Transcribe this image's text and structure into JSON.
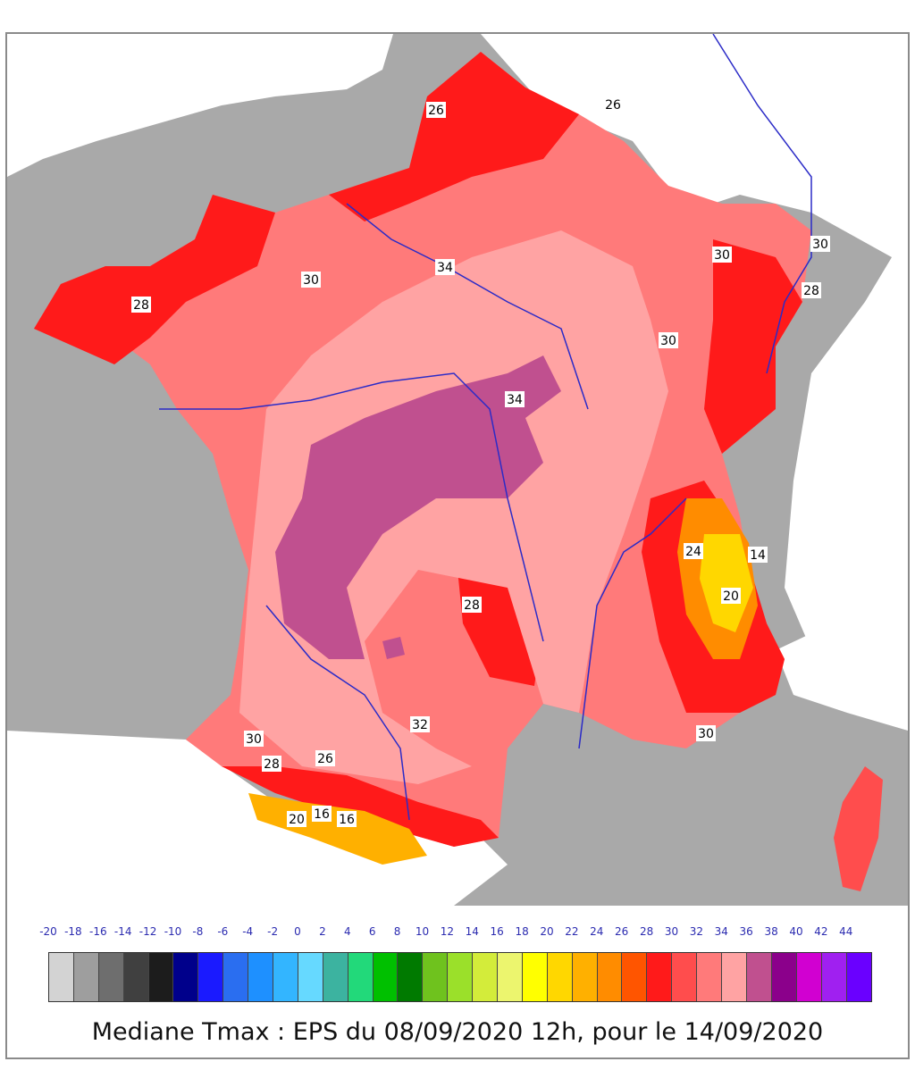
{
  "caption": "Mediane Tmax : EPS du 08/09/2020 12h, pour le 14/09/2020",
  "legend": {
    "ticks": [
      "-20",
      "-18",
      "-16",
      "-14",
      "-12",
      "-10",
      "-8",
      "-6",
      "-4",
      "-2",
      "0",
      "2",
      "4",
      "6",
      "8",
      "10",
      "12",
      "14",
      "16",
      "18",
      "20",
      "22",
      "24",
      "26",
      "28",
      "30",
      "32",
      "34",
      "36",
      "38",
      "40",
      "42",
      "44"
    ],
    "colors": [
      "#d3d3d3",
      "#9e9e9e",
      "#6e6e6e",
      "#404040",
      "#1c1c1c",
      "#00008b",
      "#1a1aff",
      "#2a6ef0",
      "#1e90ff",
      "#33b5ff",
      "#66d9ff",
      "#3cb3a0",
      "#22d97a",
      "#00c000",
      "#007a00",
      "#6fc21e",
      "#9be02a",
      "#d3ec3a",
      "#ecf56e",
      "#ffff00",
      "#ffd700",
      "#ffb000",
      "#ff8c00",
      "#ff5500",
      "#ff1a1a",
      "#ff4d4d",
      "#ff7a7a",
      "#ffa3a3",
      "#c0508f",
      "#8b008b",
      "#d100d1",
      "#a020f0",
      "#6a00ff"
    ]
  },
  "contour_labels": [
    "26",
    "26",
    "30",
    "34",
    "30",
    "30",
    "28",
    "28",
    "30",
    "34",
    "28",
    "32",
    "30",
    "28",
    "26",
    "20",
    "16",
    "16",
    "24",
    "14",
    "30",
    "20"
  ]
}
